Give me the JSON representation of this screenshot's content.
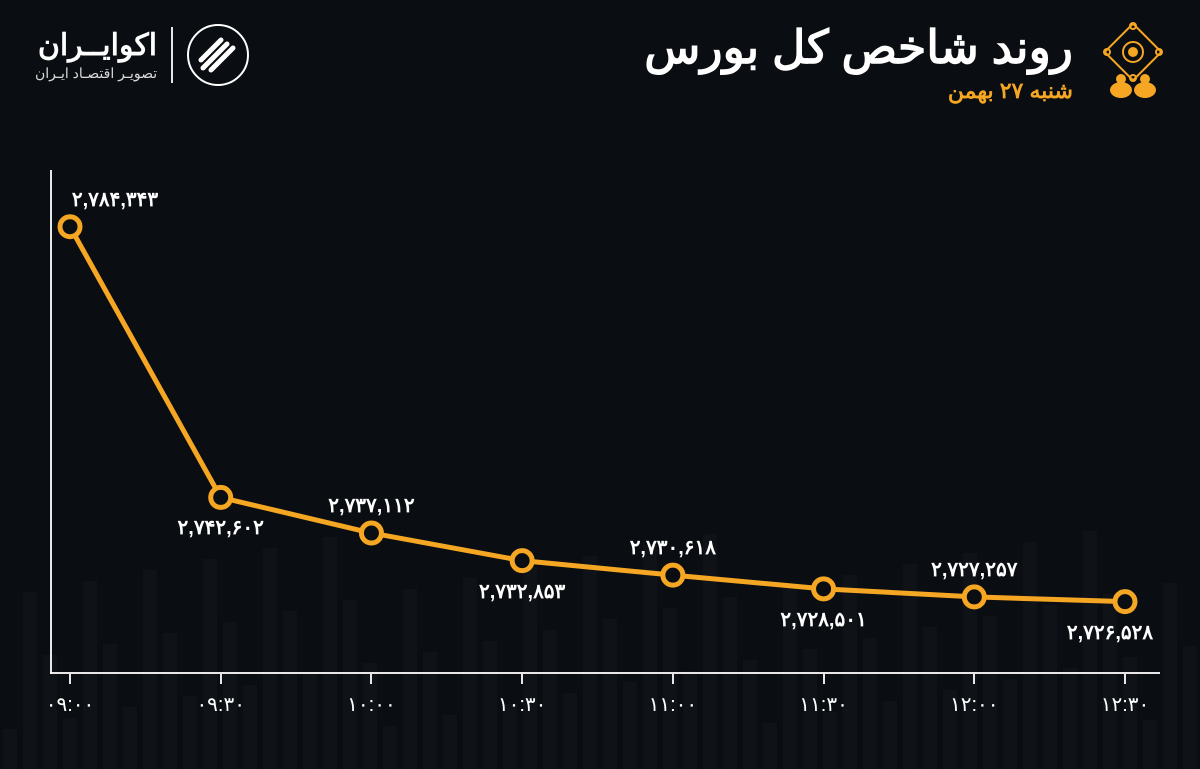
{
  "brand": {
    "name": "اکوایــران",
    "tagline": "تصویـر اقتصـاد ایـران"
  },
  "title": {
    "main": "روند شاخص کل بورس",
    "sub": "شنبه ۲۷ بهمن"
  },
  "chart": {
    "type": "line",
    "line_color": "#f5a623",
    "line_width": 5,
    "marker_radius": 10,
    "marker_fill": "#0a0d11",
    "marker_stroke": "#f5a623",
    "marker_stroke_width": 5,
    "axis_color": "#ffffff",
    "text_color": "#ffffff",
    "background_color": "#0a0d11",
    "label_fontsize": 20,
    "y_min": 2720000,
    "y_max": 2790000,
    "x_labels": [
      "۰۹:۰۰",
      "۰۹:۳۰",
      "۱۰:۰۰",
      "۱۰:۳۰",
      "۱۱:۰۰",
      "۱۱:۳۰",
      "۱۲:۰۰",
      "۱۲:۳۰"
    ],
    "values": [
      2784343,
      2742602,
      2737112,
      2732853,
      2730618,
      2728501,
      2727257,
      2726528
    ],
    "value_labels": [
      "۲,۷۸۴,۳۴۳",
      "۲,۷۴۲,۶۰۲",
      "۲,۷۳۷,۱۱۲",
      "۲,۷۳۲,۸۵۳",
      "۲,۷۳۰,۶۱۸",
      "۲,۷۲۸,۵۰۱",
      "۲,۷۲۷,۲۵۷",
      "۲,۷۲۶,۵۲۸"
    ],
    "value_label_pos": [
      "above",
      "below",
      "above",
      "below",
      "above",
      "below",
      "above",
      "below"
    ]
  },
  "bgbars": {
    "color": "#1a2026",
    "opacity": 0.35,
    "count": 60
  }
}
